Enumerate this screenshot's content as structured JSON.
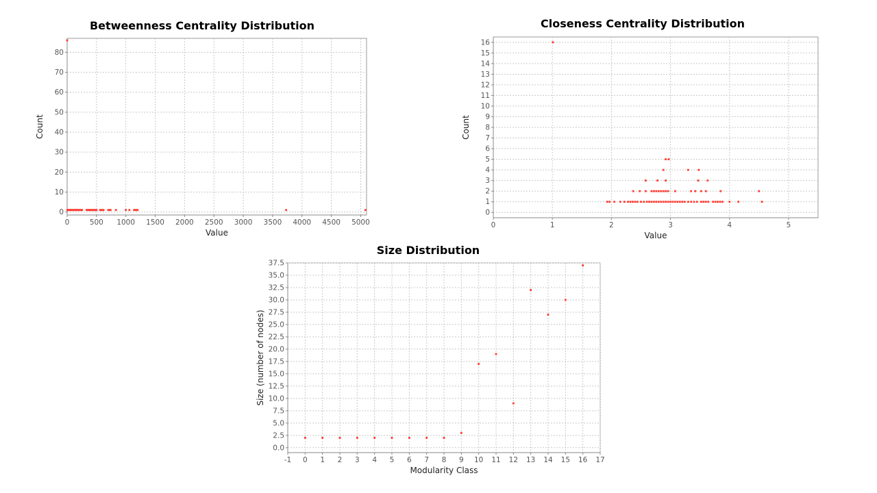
{
  "chart_data": [
    {
      "type": "scatter",
      "title": "Betweenness Centrality Distribution",
      "xlabel": "Value",
      "ylabel": "Count",
      "xlim": [
        0,
        5100
      ],
      "ylim": [
        -1.5,
        87
      ],
      "xticks": [
        0,
        500,
        1000,
        1500,
        2000,
        2500,
        3000,
        3500,
        4000,
        4500,
        5000
      ],
      "yticks": [
        0,
        10,
        20,
        30,
        40,
        50,
        60,
        70,
        80
      ],
      "grid": true,
      "color": "#ff3b30",
      "points": [
        [
          0,
          86
        ],
        [
          3,
          1
        ],
        [
          10,
          1
        ],
        [
          20,
          1
        ],
        [
          30,
          1
        ],
        [
          45,
          1
        ],
        [
          60,
          1
        ],
        [
          75,
          1
        ],
        [
          90,
          1
        ],
        [
          105,
          1
        ],
        [
          120,
          1
        ],
        [
          135,
          1
        ],
        [
          150,
          1
        ],
        [
          165,
          1
        ],
        [
          180,
          1
        ],
        [
          195,
          1
        ],
        [
          210,
          1
        ],
        [
          225,
          1
        ],
        [
          240,
          1
        ],
        [
          255,
          1
        ],
        [
          330,
          1
        ],
        [
          345,
          1
        ],
        [
          360,
          1
        ],
        [
          375,
          1
        ],
        [
          390,
          1
        ],
        [
          405,
          1
        ],
        [
          420,
          1
        ],
        [
          435,
          1
        ],
        [
          450,
          1
        ],
        [
          465,
          1
        ],
        [
          480,
          1
        ],
        [
          500,
          1
        ],
        [
          560,
          1
        ],
        [
          580,
          1
        ],
        [
          600,
          1
        ],
        [
          620,
          1
        ],
        [
          700,
          1
        ],
        [
          720,
          1
        ],
        [
          740,
          1
        ],
        [
          830,
          1
        ],
        [
          1000,
          1
        ],
        [
          1060,
          1
        ],
        [
          1140,
          1
        ],
        [
          1160,
          1
        ],
        [
          1180,
          1
        ],
        [
          1200,
          1
        ],
        [
          3730,
          1
        ],
        [
          5080,
          1
        ]
      ]
    },
    {
      "type": "scatter",
      "title": "Closeness Centrality Distribution",
      "xlabel": "Value",
      "ylabel": "Count",
      "xlim": [
        0,
        5.5
      ],
      "ylim": [
        -0.5,
        16.5
      ],
      "xticks": [
        0,
        1,
        2,
        3,
        4,
        5
      ],
      "yticks": [
        0,
        1,
        2,
        3,
        4,
        5,
        6,
        7,
        8,
        9,
        10,
        11,
        12,
        13,
        14,
        15,
        16
      ],
      "grid": true,
      "color": "#ff3b30",
      "points": [
        [
          1.01,
          16
        ],
        [
          2.92,
          5
        ],
        [
          2.97,
          5
        ],
        [
          2.88,
          4
        ],
        [
          3.3,
          4
        ],
        [
          3.48,
          4
        ],
        [
          2.58,
          3
        ],
        [
          2.78,
          3
        ],
        [
          2.92,
          3
        ],
        [
          3.47,
          3
        ],
        [
          3.63,
          3
        ],
        [
          2.37,
          2
        ],
        [
          2.48,
          2
        ],
        [
          2.58,
          2
        ],
        [
          2.68,
          2
        ],
        [
          2.72,
          2
        ],
        [
          2.76,
          2
        ],
        [
          2.8,
          2
        ],
        [
          2.84,
          2
        ],
        [
          2.88,
          2
        ],
        [
          2.92,
          2
        ],
        [
          2.96,
          2
        ],
        [
          3.08,
          2
        ],
        [
          3.35,
          2
        ],
        [
          3.42,
          2
        ],
        [
          3.52,
          2
        ],
        [
          3.6,
          2
        ],
        [
          3.85,
          2
        ],
        [
          4.5,
          2
        ],
        [
          1.93,
          1
        ],
        [
          1.97,
          1
        ],
        [
          2.05,
          1
        ],
        [
          2.15,
          1
        ],
        [
          2.22,
          1
        ],
        [
          2.28,
          1
        ],
        [
          2.32,
          1
        ],
        [
          2.36,
          1
        ],
        [
          2.4,
          1
        ],
        [
          2.44,
          1
        ],
        [
          2.5,
          1
        ],
        [
          2.55,
          1
        ],
        [
          2.6,
          1
        ],
        [
          2.64,
          1
        ],
        [
          2.68,
          1
        ],
        [
          2.72,
          1
        ],
        [
          2.76,
          1
        ],
        [
          2.8,
          1
        ],
        [
          2.84,
          1
        ],
        [
          2.88,
          1
        ],
        [
          2.92,
          1
        ],
        [
          2.96,
          1
        ],
        [
          3.0,
          1
        ],
        [
          3.04,
          1
        ],
        [
          3.08,
          1
        ],
        [
          3.12,
          1
        ],
        [
          3.16,
          1
        ],
        [
          3.2,
          1
        ],
        [
          3.24,
          1
        ],
        [
          3.3,
          1
        ],
        [
          3.35,
          1
        ],
        [
          3.4,
          1
        ],
        [
          3.45,
          1
        ],
        [
          3.52,
          1
        ],
        [
          3.56,
          1
        ],
        [
          3.6,
          1
        ],
        [
          3.64,
          1
        ],
        [
          3.72,
          1
        ],
        [
          3.76,
          1
        ],
        [
          3.8,
          1
        ],
        [
          3.84,
          1
        ],
        [
          3.88,
          1
        ],
        [
          4.0,
          1
        ],
        [
          4.15,
          1
        ],
        [
          4.55,
          1
        ]
      ]
    },
    {
      "type": "scatter",
      "title": "Size Distribution",
      "xlabel": "Modularity Class",
      "ylabel": "Size (number of nodes)",
      "xlim": [
        -1,
        17
      ],
      "ylim": [
        -1,
        37.5
      ],
      "xticks": [
        -1,
        0,
        1,
        2,
        3,
        4,
        5,
        6,
        7,
        8,
        9,
        10,
        11,
        12,
        13,
        14,
        15,
        16,
        17
      ],
      "yticks": [
        "0.0",
        "2.5",
        "5.0",
        "7.5",
        "10.0",
        "12.5",
        "15.0",
        "17.5",
        "20.0",
        "22.5",
        "25.0",
        "27.5",
        "30.0",
        "32.5",
        "35.0",
        "37.5"
      ],
      "grid": true,
      "color": "#ff3b30",
      "points": [
        [
          0,
          2
        ],
        [
          1,
          2
        ],
        [
          2,
          2
        ],
        [
          3,
          2
        ],
        [
          4,
          2
        ],
        [
          5,
          2
        ],
        [
          6,
          2
        ],
        [
          7,
          2
        ],
        [
          8,
          2
        ],
        [
          9,
          3
        ],
        [
          10,
          17
        ],
        [
          11,
          19
        ],
        [
          12,
          9
        ],
        [
          13,
          32
        ],
        [
          14,
          27
        ],
        [
          15,
          30
        ],
        [
          16,
          37
        ]
      ]
    }
  ]
}
